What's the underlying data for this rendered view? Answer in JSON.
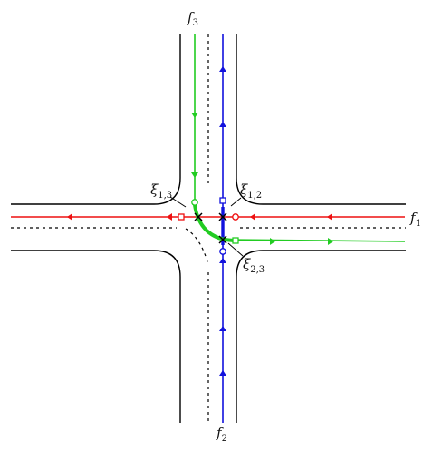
{
  "labels": {
    "f1": {
      "base": "f",
      "sub": "1"
    },
    "f2": {
      "base": "f",
      "sub": "2"
    },
    "f3": {
      "base": "f",
      "sub": "3"
    },
    "xi12": {
      "base": "ξ",
      "sub": "1,2"
    },
    "xi13": {
      "base": "ξ",
      "sub": "1,3"
    },
    "xi23": {
      "base": "ξ",
      "sub": "2,3"
    }
  },
  "colors": {
    "f1": "#ee1111",
    "f2": "#1111dd",
    "f3": "#22cc22",
    "road": "#000000"
  }
}
